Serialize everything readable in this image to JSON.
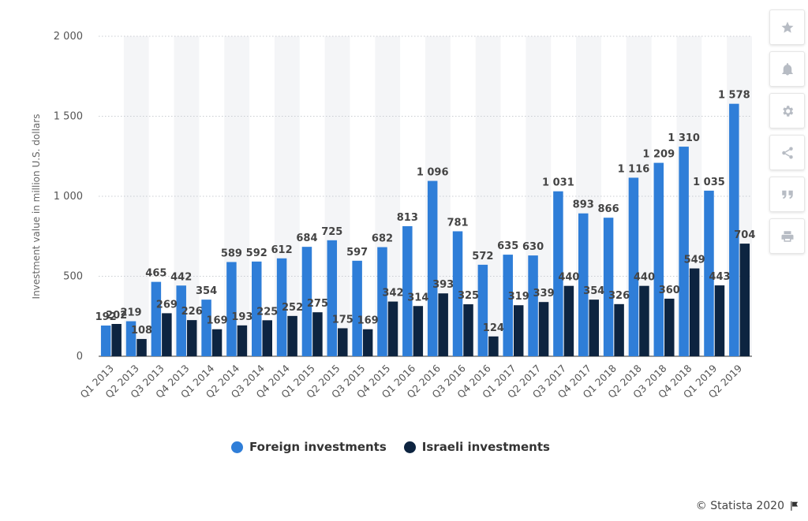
{
  "chart_data": {
    "type": "bar",
    "title": "",
    "ylabel": "Investment value in million U.S. dollars",
    "xlabel": "",
    "ylim": [
      0,
      2000
    ],
    "yticks": [
      0,
      500,
      1000,
      1500,
      2000
    ],
    "ytick_labels": [
      "0",
      "500",
      "1 000",
      "1 500",
      "2 000"
    ],
    "grid": true,
    "legend_position": "bottom-center",
    "categories": [
      "Q1 2013",
      "Q2 2013",
      "Q3 2013",
      "Q4 2013",
      "Q1 2014",
      "Q2 2014",
      "Q3 2014",
      "Q4 2014",
      "Q1 2015",
      "Q2 2015",
      "Q3 2015",
      "Q4 2015",
      "Q1 2016",
      "Q2 2016",
      "Q3 2016",
      "Q4 2016",
      "Q1 2017",
      "Q2 2017",
      "Q3 2017",
      "Q4 2017",
      "Q1 2018",
      "Q2 2018",
      "Q3 2018",
      "Q4 2018",
      "Q1 2019",
      "Q2 2019"
    ],
    "series": [
      {
        "name": "Foreign investments",
        "color": "#2f7ed8",
        "values": [
          192,
          219,
          465,
          442,
          354,
          589,
          592,
          612,
          684,
          725,
          597,
          682,
          813,
          1096,
          781,
          572,
          635,
          630,
          1031,
          893,
          866,
          1116,
          1209,
          1310,
          1035,
          1578
        ],
        "labels": [
          "192",
          "219",
          "465",
          "442",
          "354",
          "589",
          "592",
          "612",
          "684",
          "725",
          "597",
          "682",
          "813",
          "1 096",
          "781",
          "572",
          "635",
          "630",
          "1 031",
          "893",
          "866",
          "1 116",
          "1 209",
          "1 310",
          "1 035",
          "1 578"
        ]
      },
      {
        "name": "Israeli investments",
        "color": "#0d2440",
        "values": [
          202,
          108,
          269,
          226,
          169,
          193,
          225,
          252,
          275,
          175,
          169,
          342,
          314,
          393,
          325,
          124,
          319,
          339,
          440,
          354,
          326,
          440,
          360,
          549,
          443,
          704
        ],
        "labels": [
          "202",
          "108",
          "269",
          "226",
          "169",
          "193",
          "225",
          "252",
          "275",
          "175",
          "169",
          "342",
          "314",
          "393",
          "325",
          "124",
          "319",
          "339",
          "440",
          "354",
          "326",
          "440",
          "360",
          "549",
          "443",
          "704"
        ]
      }
    ]
  },
  "legend": {
    "items": [
      {
        "label": "Foreign investments",
        "color": "#2f7ed8"
      },
      {
        "label": "Israeli investments",
        "color": "#0d2440"
      }
    ]
  },
  "toolbar": {
    "buttons": [
      "star-icon",
      "bell-icon",
      "gear-icon",
      "share-icon",
      "quote-icon",
      "print-icon"
    ]
  },
  "footer": {
    "copyright": "© Statista 2020",
    "flag_icon": "flag-icon"
  }
}
